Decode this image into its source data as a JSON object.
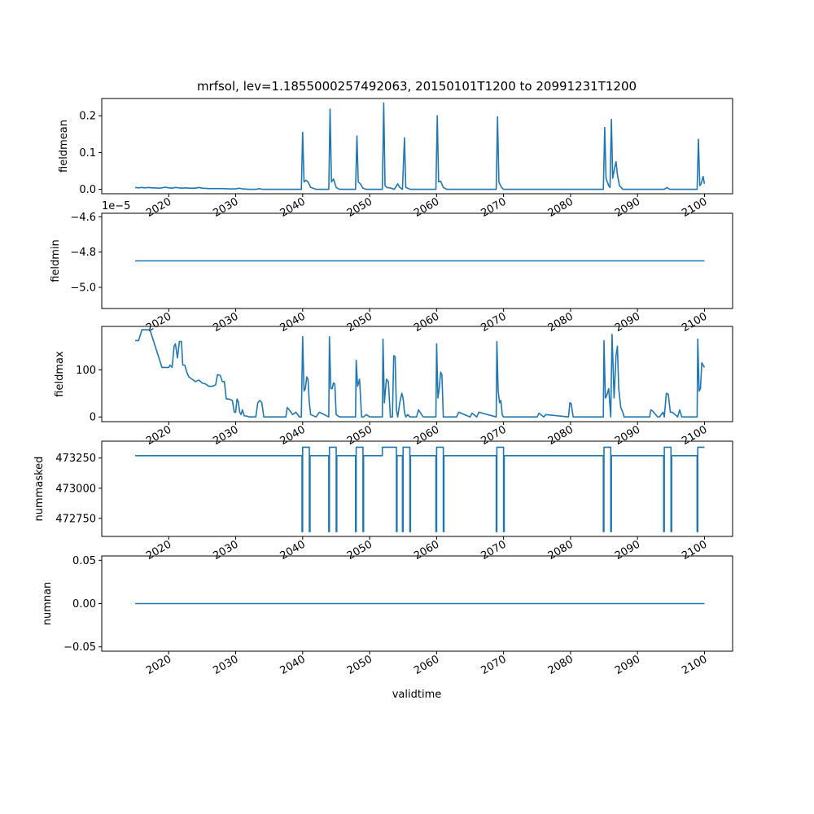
{
  "figure": {
    "title": "mrfsol, lev=1.1855000257492063, 20150101T1200 to 20991231T1200",
    "xlabel": "validtime"
  },
  "chart_data": [
    {
      "type": "line",
      "name": "fieldmean-panel",
      "ylabel": "fieldmean",
      "xlim": [
        2010.0,
        2104.2
      ],
      "ylim": [
        -0.012,
        0.247
      ],
      "yticks": [
        0.0,
        0.1,
        0.2
      ],
      "ytick_labels": [
        "0.0",
        "0.1",
        "0.2"
      ],
      "xticks": [
        2020,
        2030,
        2040,
        2050,
        2060,
        2070,
        2080,
        2090,
        2100
      ],
      "xtick_labels": [
        "2020",
        "2030",
        "2040",
        "2050",
        "2060",
        "2070",
        "2080",
        "2090",
        "2100"
      ],
      "x": [
        2015.0,
        2015.5,
        2016.0,
        2016.5,
        2017.0,
        2017.5,
        2018.0,
        2018.5,
        2019.0,
        2019.5,
        2020.0,
        2020.5,
        2021.0,
        2021.5,
        2022.0,
        2022.5,
        2023.0,
        2024.0,
        2024.5,
        2025.0,
        2026.0,
        2027.0,
        2028.0,
        2029.0,
        2030.0,
        2030.5,
        2031.0,
        2032.0,
        2033.0,
        2033.5,
        2034.0,
        2036.0,
        2038.0,
        2039.8,
        2040.0,
        2040.2,
        2040.5,
        2040.8,
        2041.2,
        2042.0,
        2043.9,
        2044.1,
        2044.3,
        2044.6,
        2045.0,
        2045.5,
        2047.0,
        2047.9,
        2048.1,
        2048.3,
        2048.6,
        2049.0,
        2049.5,
        2051.0,
        2051.9,
        2052.1,
        2052.3,
        2052.6,
        2053.2,
        2053.7,
        2054.2,
        2054.5,
        2054.9,
        2055.2,
        2055.4,
        2055.7,
        2056.0,
        2058.0,
        2059.9,
        2060.1,
        2060.3,
        2060.6,
        2061.0,
        2061.5,
        2063.0,
        2068.9,
        2069.1,
        2069.3,
        2069.7,
        2070.0,
        2072.0,
        2078.0,
        2080.0,
        2084.9,
        2085.1,
        2085.3,
        2085.7,
        2085.9,
        2086.1,
        2086.3,
        2086.6,
        2086.8,
        2087.0,
        2087.3,
        2087.8,
        2090.0,
        2094.0,
        2094.4,
        2094.8,
        2095.2,
        2096.0,
        2098.9,
        2099.1,
        2099.3,
        2099.5,
        2099.8,
        2100.0
      ],
      "y": [
        0.005,
        0.004,
        0.005,
        0.004,
        0.005,
        0.004,
        0.004,
        0.003,
        0.004,
        0.006,
        0.004,
        0.003,
        0.005,
        0.004,
        0.003,
        0.004,
        0.003,
        0.003,
        0.005,
        0.003,
        0.002,
        0.002,
        0.002,
        0.001,
        0.001,
        0.003,
        0.001,
        0.0,
        0.0,
        0.002,
        0.0,
        0.0,
        0.0,
        0.0,
        0.155,
        0.02,
        0.025,
        0.02,
        0.005,
        0.0,
        0.0,
        0.218,
        0.02,
        0.028,
        0.005,
        0.0,
        0.0,
        0.0,
        0.145,
        0.02,
        0.015,
        0.003,
        0.0,
        0.0,
        0.0,
        0.235,
        0.01,
        0.005,
        0.003,
        0.0,
        0.015,
        0.005,
        0.0,
        0.14,
        0.005,
        0.003,
        0.0,
        0.0,
        0.0,
        0.2,
        0.02,
        0.022,
        0.005,
        0.0,
        0.0,
        0.0,
        0.197,
        0.02,
        0.005,
        0.0,
        0.0,
        0.0,
        0.0,
        0.0,
        0.168,
        0.03,
        0.01,
        0.005,
        0.19,
        0.03,
        0.06,
        0.075,
        0.04,
        0.01,
        0.0,
        0.0,
        0.0,
        0.005,
        0.0,
        0.0,
        0.0,
        0.0,
        0.136,
        0.01,
        0.015,
        0.035,
        0.015
      ]
    },
    {
      "type": "line",
      "name": "fieldmin-panel",
      "ylabel": "fieldmin",
      "offset_text": "1e−5",
      "xlim": [
        2010.0,
        2104.2
      ],
      "ylim": [
        -5.12,
        -4.58
      ],
      "yticks": [
        -5.0,
        -4.8,
        -4.6
      ],
      "ytick_labels": [
        "−5.0",
        "−4.8",
        "−4.6"
      ],
      "xticks": [
        2020,
        2030,
        2040,
        2050,
        2060,
        2070,
        2080,
        2090,
        2100
      ],
      "xtick_labels": [
        "2020",
        "2030",
        "2040",
        "2050",
        "2060",
        "2070",
        "2080",
        "2090",
        "2100"
      ],
      "x": [
        2015.0,
        2100.0
      ],
      "y": [
        -4.85,
        -4.85
      ]
    },
    {
      "type": "line",
      "name": "fieldmax-panel",
      "ylabel": "fieldmax",
      "xlim": [
        2010.0,
        2104.2
      ],
      "ylim": [
        -10,
        192
      ],
      "yticks": [
        0,
        100
      ],
      "ytick_labels": [
        "0",
        "100"
      ],
      "xticks": [
        2020,
        2030,
        2040,
        2050,
        2060,
        2070,
        2080,
        2090,
        2100
      ],
      "xtick_labels": [
        "2020",
        "2030",
        "2040",
        "2050",
        "2060",
        "2070",
        "2080",
        "2090",
        "2100"
      ],
      "x": [
        2015.0,
        2015.5,
        2016.0,
        2016.5,
        2017.0,
        2017.2,
        2019.0,
        2019.2,
        2019.5,
        2020.0,
        2020.2,
        2020.5,
        2020.8,
        2021.0,
        2021.3,
        2021.6,
        2021.9,
        2022.1,
        2022.4,
        2022.7,
        2023.0,
        2023.5,
        2024.0,
        2024.5,
        2025.0,
        2025.5,
        2026.0,
        2026.5,
        2027.0,
        2027.3,
        2027.7,
        2028.0,
        2028.3,
        2028.6,
        2029.0,
        2029.5,
        2029.8,
        2030.0,
        2030.2,
        2030.4,
        2030.6,
        2030.8,
        2031.0,
        2031.3,
        2031.6,
        2032.0,
        2033.0,
        2033.3,
        2033.6,
        2033.9,
        2034.2,
        2037.5,
        2037.7,
        2038.0,
        2038.5,
        2039.0,
        2039.5,
        2039.8,
        2040.0,
        2040.2,
        2040.4,
        2040.6,
        2040.8,
        2041.0,
        2041.2,
        2042.0,
        2042.5,
        2043.9,
        2044.0,
        2044.2,
        2044.4,
        2044.6,
        2044.8,
        2045.0,
        2045.5,
        2047.9,
        2048.0,
        2048.2,
        2048.5,
        2048.8,
        2049.1,
        2049.5,
        2050.0,
        2051.0,
        2051.9,
        2052.0,
        2052.2,
        2052.5,
        2052.8,
        2053.1,
        2053.4,
        2053.6,
        2053.8,
        2054.0,
        2054.2,
        2054.5,
        2054.8,
        2055.0,
        2055.2,
        2055.4,
        2055.7,
        2056.0,
        2056.5,
        2057.0,
        2057.3,
        2058.0,
        2058.5,
        2059.9,
        2060.0,
        2060.2,
        2060.4,
        2060.6,
        2060.8,
        2061.0,
        2061.5,
        2063.0,
        2063.3,
        2065.0,
        2065.3,
        2066.0,
        2066.3,
        2068.9,
        2069.0,
        2069.2,
        2069.4,
        2069.6,
        2069.8,
        2070.0,
        2070.5,
        2075.0,
        2075.3,
        2076.0,
        2076.3,
        2079.7,
        2079.9,
        2080.1,
        2080.4,
        2084.9,
        2085.0,
        2085.2,
        2085.4,
        2085.7,
        2086.0,
        2086.2,
        2086.5,
        2086.8,
        2087.0,
        2087.2,
        2087.5,
        2087.8,
        2088.0,
        2088.3,
        2091.5,
        2091.8,
        2092.0,
        2092.3,
        2093.0,
        2093.3,
        2093.8,
        2094.0,
        2094.3,
        2094.6,
        2094.9,
        2095.2,
        2096.0,
        2096.3,
        2096.6,
        2098.9,
        2099.0,
        2099.2,
        2099.4,
        2099.6,
        2099.8,
        2100.0
      ],
      "y": [
        162,
        162,
        185,
        185,
        185,
        185,
        105,
        105,
        105,
        105,
        110,
        105,
        150,
        155,
        125,
        160,
        160,
        110,
        110,
        95,
        85,
        80,
        75,
        78,
        72,
        70,
        65,
        65,
        68,
        90,
        88,
        75,
        75,
        38,
        38,
        35,
        10,
        10,
        38,
        32,
        10,
        5,
        15,
        2,
        2,
        0,
        0,
        30,
        35,
        30,
        0,
        0,
        20,
        15,
        5,
        10,
        0,
        0,
        170,
        55,
        60,
        85,
        80,
        30,
        5,
        0,
        10,
        0,
        170,
        60,
        60,
        72,
        70,
        5,
        0,
        0,
        120,
        65,
        80,
        0,
        0,
        5,
        0,
        0,
        0,
        165,
        30,
        80,
        75,
        0,
        0,
        130,
        128,
        15,
        0,
        30,
        50,
        40,
        10,
        0,
        5,
        0,
        0,
        0,
        15,
        0,
        0,
        0,
        155,
        40,
        60,
        95,
        90,
        0,
        0,
        0,
        10,
        0,
        8,
        0,
        10,
        0,
        160,
        55,
        30,
        35,
        5,
        0,
        0,
        0,
        8,
        0,
        5,
        0,
        30,
        28,
        0,
        0,
        162,
        40,
        45,
        60,
        0,
        175,
        40,
        130,
        150,
        60,
        20,
        10,
        0,
        0,
        0,
        0,
        15,
        12,
        0,
        0,
        10,
        0,
        50,
        48,
        10,
        10,
        0,
        15,
        0,
        0,
        165,
        55,
        60,
        115,
        110,
        105
      ]
    },
    {
      "type": "line",
      "name": "nummasked-panel",
      "ylabel": "nummasked",
      "xlim": [
        2010.0,
        2104.2
      ],
      "ylim": [
        472600,
        473390
      ],
      "yticks": [
        472750,
        473000,
        473250
      ],
      "ytick_labels": [
        "472750",
        "473000",
        "473250"
      ],
      "xticks": [
        2020,
        2030,
        2040,
        2050,
        2060,
        2070,
        2080,
        2090,
        2100
      ],
      "xtick_labels": [
        "2020",
        "2030",
        "2040",
        "2050",
        "2060",
        "2070",
        "2080",
        "2090",
        "2100"
      ],
      "x": [
        2015.0,
        2039.9,
        2039.9,
        2040.0,
        2040.0,
        2041.0,
        2041.0,
        2041.1,
        2041.1,
        2043.9,
        2043.9,
        2044.0,
        2044.0,
        2045.0,
        2045.0,
        2045.1,
        2045.1,
        2047.9,
        2047.9,
        2048.0,
        2048.0,
        2049.0,
        2049.0,
        2049.1,
        2049.1,
        2051.9,
        2051.9,
        2052.0,
        2052.0,
        2054.0,
        2054.0,
        2054.1,
        2054.1,
        2054.9,
        2054.9,
        2055.0,
        2055.0,
        2056.0,
        2056.0,
        2056.1,
        2056.1,
        2059.9,
        2059.9,
        2060.0,
        2060.0,
        2061.0,
        2061.0,
        2061.1,
        2061.1,
        2068.9,
        2068.9,
        2069.0,
        2069.0,
        2070.0,
        2070.0,
        2070.1,
        2070.1,
        2084.9,
        2084.9,
        2085.0,
        2085.0,
        2086.0,
        2086.0,
        2086.1,
        2086.1,
        2093.9,
        2093.9,
        2094.0,
        2094.0,
        2095.0,
        2095.0,
        2095.1,
        2095.1,
        2098.9,
        2098.9,
        2099.0,
        2099.0,
        2100.0
      ],
      "y": [
        473270,
        473270,
        472640,
        472640,
        473340,
        473340,
        472640,
        472640,
        473270,
        473270,
        472640,
        472640,
        473340,
        473340,
        472640,
        472640,
        473270,
        473270,
        472640,
        472640,
        473340,
        473340,
        472640,
        472640,
        473270,
        473270,
        473340,
        473340,
        473340,
        473340,
        472640,
        472640,
        473270,
        473270,
        472640,
        472640,
        473340,
        473340,
        472640,
        472640,
        473270,
        473270,
        472640,
        472640,
        473340,
        473340,
        472640,
        472640,
        473270,
        473270,
        472640,
        472640,
        473340,
        473340,
        472640,
        472640,
        473270,
        473270,
        472640,
        472640,
        473340,
        473340,
        472640,
        472640,
        473270,
        473270,
        472640,
        472640,
        473340,
        473340,
        472640,
        472640,
        473270,
        473270,
        472640,
        472640,
        473340,
        473340
      ]
    },
    {
      "type": "line",
      "name": "numnan-panel",
      "ylabel": "numnan",
      "xlim": [
        2010.0,
        2104.2
      ],
      "ylim": [
        -0.055,
        0.055
      ],
      "yticks": [
        -0.05,
        0.0,
        0.05
      ],
      "ytick_labels": [
        "−0.05",
        "0.00",
        "0.05"
      ],
      "xticks": [
        2020,
        2030,
        2040,
        2050,
        2060,
        2070,
        2080,
        2090,
        2100
      ],
      "xtick_labels": [
        "2020",
        "2030",
        "2040",
        "2050",
        "2060",
        "2070",
        "2080",
        "2090",
        "2100"
      ],
      "x": [
        2015.0,
        2100.0
      ],
      "y": [
        0.0,
        0.0
      ]
    }
  ]
}
